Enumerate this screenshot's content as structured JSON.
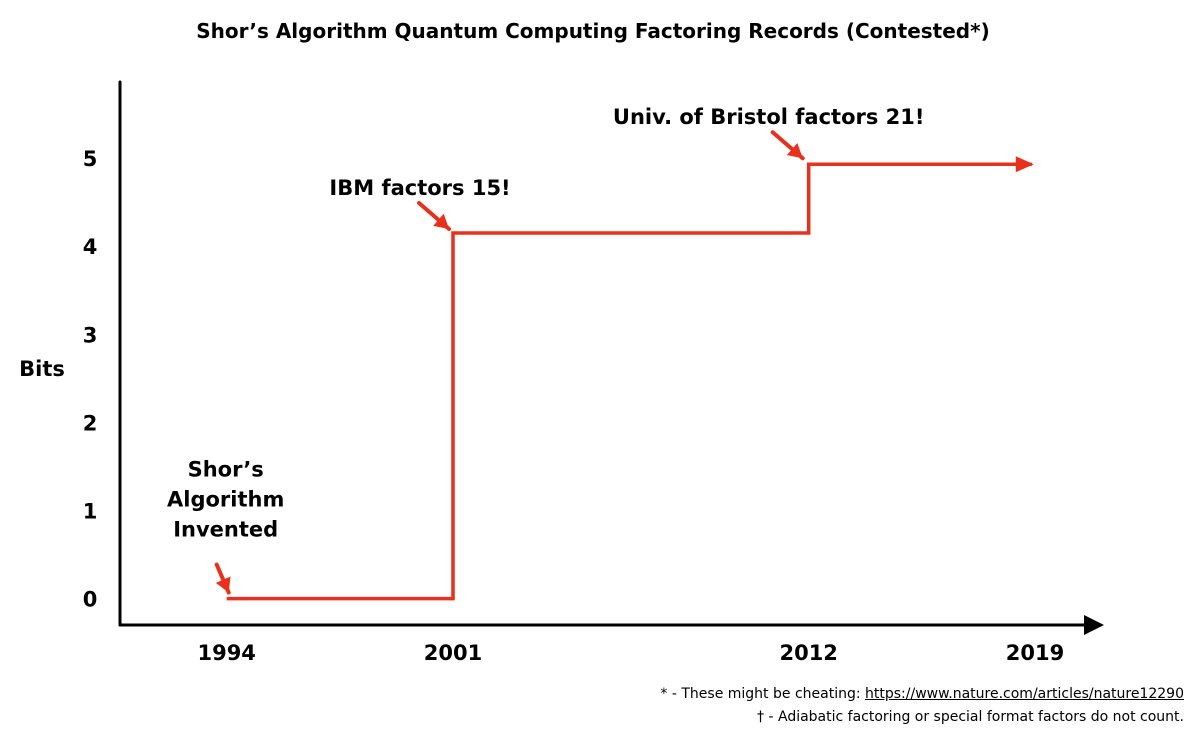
{
  "chart_data": {
    "type": "line",
    "step": true,
    "title": "Shor’s Algorithm Quantum Computing Factoring Records (Contested*)",
    "ylabel": "Bits",
    "xlabel": "",
    "x_ticks": [
      1994,
      2001,
      2012,
      2019
    ],
    "y_ticks": [
      0,
      1,
      2,
      3,
      4,
      5
    ],
    "xlim": [
      1990.7,
      2020.7
    ],
    "ylim": [
      -0.3,
      5.75
    ],
    "grid": false,
    "series": [
      {
        "color": "#e8301c",
        "points": [
          {
            "x": 1994,
            "y": 0
          },
          {
            "x": 2001,
            "y": 0
          },
          {
            "x": 2001,
            "y": 4.15
          },
          {
            "x": 2012,
            "y": 4.15
          },
          {
            "x": 2012,
            "y": 4.93
          },
          {
            "x": 2018.9,
            "y": 4.93
          }
        ],
        "end_arrow": true
      }
    ],
    "annotations": [
      {
        "text": [
          "Shor’s",
          "Algorithm",
          "Invented"
        ],
        "x": 1994,
        "y": 0
      },
      {
        "text": [
          "IBM factors 15!"
        ],
        "x": 2001,
        "y": 4.15
      },
      {
        "text": [
          "Univ. of Bristol factors 21!"
        ],
        "x": 2012,
        "y": 4.93
      }
    ]
  },
  "footnotes": {
    "line1_prefix": "* - These might be cheating: ",
    "line1_link": "https://www.nature.com/articles/nature12290",
    "line2": "† - Adiabatic factoring or special format factors do not count."
  },
  "colors": {
    "accent": "#e8301c",
    "axis": "#000000"
  }
}
